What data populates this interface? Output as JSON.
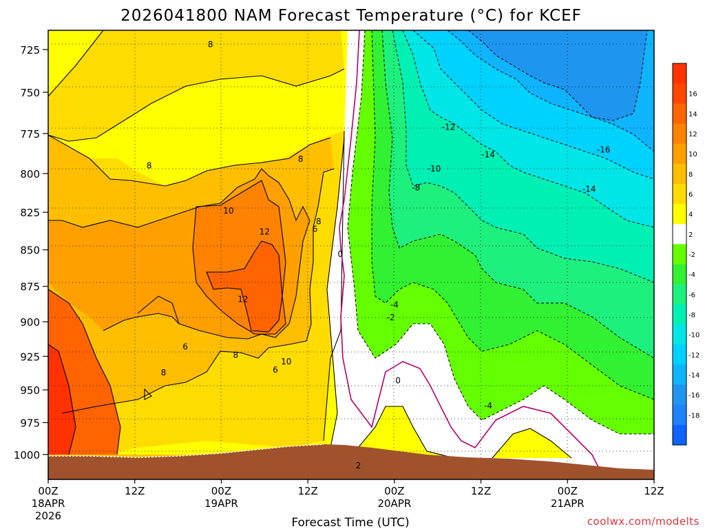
{
  "chart_data": {
    "type": "contour",
    "title": "2026041800 NAM Forecast Temperature (°C) for KCEF",
    "xlabel": "Forecast Time (UTC)",
    "ylabel": "",
    "credit": "coolwx.com/modelts",
    "x_range_hours": [
      0,
      84
    ],
    "x_ticks": [
      {
        "hour": 0,
        "label": "00Z",
        "date": "18APR",
        "year": "2026"
      },
      {
        "hour": 12,
        "label": "12Z",
        "date": "",
        "year": ""
      },
      {
        "hour": 24,
        "label": "00Z",
        "date": "19APR",
        "year": ""
      },
      {
        "hour": 36,
        "label": "12Z",
        "date": "",
        "year": ""
      },
      {
        "hour": 48,
        "label": "00Z",
        "date": "20APR",
        "year": ""
      },
      {
        "hour": 60,
        "label": "12Z",
        "date": "",
        "year": ""
      },
      {
        "hour": 72,
        "label": "00Z",
        "date": "21APR",
        "year": ""
      },
      {
        "hour": 84,
        "label": "12Z",
        "date": "",
        "year": ""
      }
    ],
    "y_range_hpa": [
      1020,
      714
    ],
    "y_ticks": [
      725,
      750,
      775,
      800,
      825,
      850,
      875,
      900,
      925,
      950,
      975,
      1000
    ],
    "grid": true,
    "levels": [
      -18,
      -16,
      -14,
      -12,
      -10,
      -8,
      -6,
      -4,
      -2,
      2,
      4,
      6,
      8,
      10,
      12,
      14,
      16
    ],
    "colorbar": [
      {
        "label": "",
        "color": "#0f64ff"
      },
      {
        "label": "-18",
        "color": "#1e82ff"
      },
      {
        "label": "-16",
        "color": "#1e96f0"
      },
      {
        "label": "-14",
        "color": "#0fb4ff"
      },
      {
        "label": "-12",
        "color": "#00d2ff"
      },
      {
        "label": "-10",
        "color": "#00e6e6"
      },
      {
        "label": "-8",
        "color": "#00f0b4"
      },
      {
        "label": "-6",
        "color": "#1ef07d"
      },
      {
        "label": "-4",
        "color": "#32f032"
      },
      {
        "label": "-2",
        "color": "#64ff00"
      },
      {
        "label": "2",
        "color": "#ffffff"
      },
      {
        "label": "4",
        "color": "#ffff00"
      },
      {
        "label": "6",
        "color": "#ffdc00"
      },
      {
        "label": "8",
        "color": "#ffbe00"
      },
      {
        "label": "10",
        "color": "#ffa000"
      },
      {
        "label": "12",
        "color": "#ff8200"
      },
      {
        "label": "14",
        "color": "#ff6400"
      },
      {
        "label": "16",
        "color": "#ff4600"
      },
      {
        "label": "",
        "color": "#ff3200"
      }
    ],
    "contour_labels": [
      {
        "hour": 22.5,
        "p": 722,
        "text": "8"
      },
      {
        "hour": 14,
        "p": 795,
        "text": "8"
      },
      {
        "hour": 35,
        "p": 791,
        "text": "8"
      },
      {
        "hour": 25,
        "p": 824,
        "text": "10"
      },
      {
        "hour": 30,
        "p": 838,
        "text": "12"
      },
      {
        "hour": 27,
        "p": 884,
        "text": "12"
      },
      {
        "hour": 37.5,
        "p": 831,
        "text": "8"
      },
      {
        "hour": 37,
        "p": 836,
        "text": "6"
      },
      {
        "hour": 40.5,
        "p": 853,
        "text": "0"
      },
      {
        "hour": 19,
        "p": 918,
        "text": "6"
      },
      {
        "hour": 26,
        "p": 924,
        "text": "8"
      },
      {
        "hour": 33,
        "p": 929,
        "text": "10"
      },
      {
        "hour": 31.5,
        "p": 935,
        "text": "6"
      },
      {
        "hour": 16,
        "p": 937,
        "text": "8"
      },
      {
        "hour": 43,
        "p": 1009,
        "text": "2"
      },
      {
        "hour": 48.5,
        "p": 943,
        "text": "0"
      },
      {
        "hour": 47.5,
        "p": 897,
        "text": "-2"
      },
      {
        "hour": 48,
        "p": 888,
        "text": "-4"
      },
      {
        "hour": 55.5,
        "p": 771,
        "text": "-12"
      },
      {
        "hour": 61,
        "p": 788,
        "text": "-14"
      },
      {
        "hour": 53.5,
        "p": 797,
        "text": "-10"
      },
      {
        "hour": 51,
        "p": 809,
        "text": "-8"
      },
      {
        "hour": 77,
        "p": 785,
        "text": "-16"
      },
      {
        "hour": 75,
        "p": 810,
        "text": "-14"
      },
      {
        "hour": 61,
        "p": 962,
        "text": "-4"
      }
    ]
  }
}
